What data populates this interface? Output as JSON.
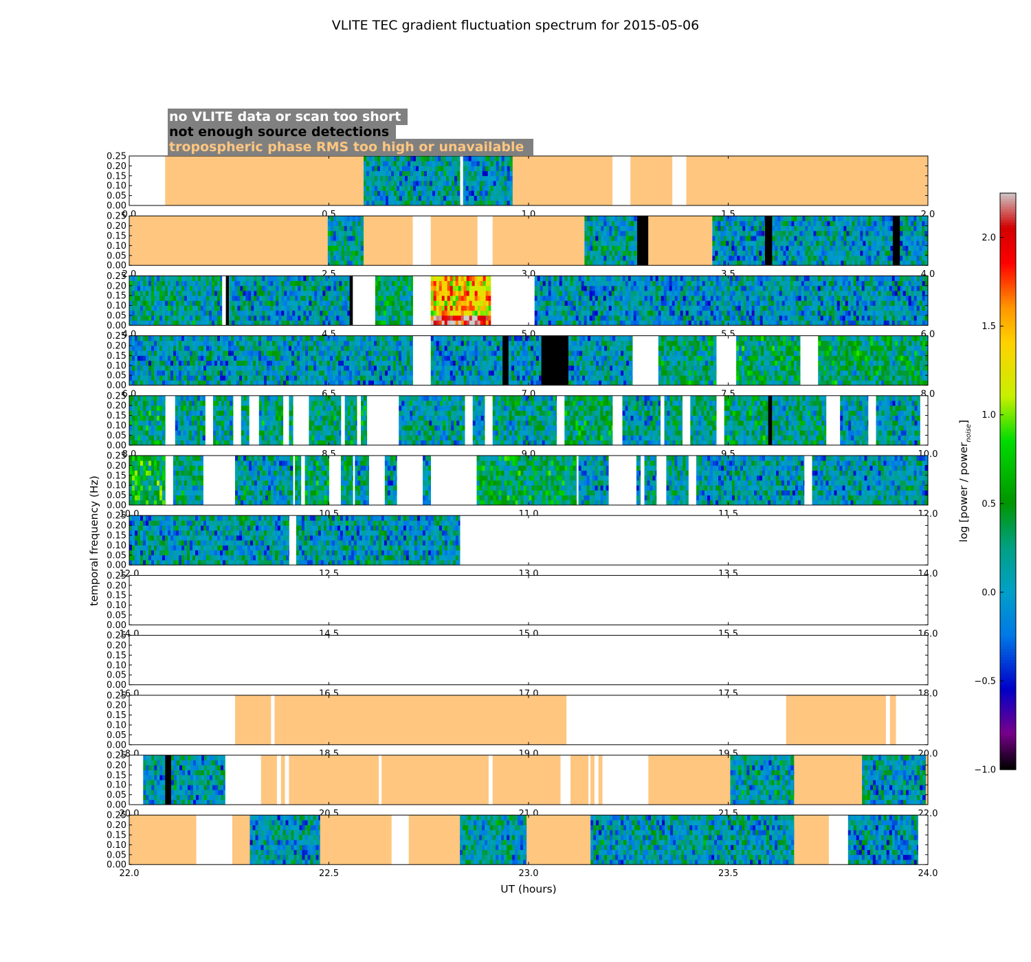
{
  "chart_data": {
    "type": "heatmap",
    "title": "VLITE TEC gradient fluctuation spectrum for 2015-05-06",
    "xlabel": "UT (hours)",
    "ylabel": "temporal frequency (Hz)",
    "colorbar_label": "log [power / power",
    "colorbar_label_sub": "noise",
    "colorbar_label_close": "]",
    "colorbar_range": [
      -1.0,
      2.25
    ],
    "colorbar_ticks": [
      "−1.0",
      "−0.5",
      "0.0",
      "0.5",
      "1.0",
      "1.5",
      "2.0"
    ],
    "colorbar_tick_values": [
      -1.0,
      -0.5,
      0.0,
      0.5,
      1.0,
      1.5,
      2.0
    ],
    "ylim": [
      0.0,
      0.25
    ],
    "y_ticks": [
      "0.00",
      "0.05",
      "0.10",
      "0.15",
      "0.20",
      "0.25"
    ],
    "y_tick_values": [
      0.0,
      0.05,
      0.1,
      0.15,
      0.2,
      0.25
    ],
    "hours_per_row": 2,
    "legend": {
      "no_data": {
        "label": "no VLITE data or scan too short",
        "color": "#ffffff",
        "background": "#808080"
      },
      "few_detections": {
        "label": "not enough source detections",
        "color": "#000000",
        "background": "#808080"
      },
      "tropo": {
        "label": "tropospheric phase RMS too high or unavailable",
        "color": "#ffc680",
        "background": "#808080"
      }
    },
    "category_colors": {
      "tropo": "#ffc680",
      "black": "#000000"
    },
    "rows": [
      {
        "xlim": [
          0,
          2
        ],
        "x_ticks": [
          "0.0",
          "0.5",
          "1.0",
          "1.5",
          "2.0"
        ],
        "segments": [
          {
            "start": 0.09,
            "end": 0.587,
            "kind": "tropo"
          },
          {
            "start": 0.587,
            "end": 0.828,
            "kind": "data",
            "level": 0.05
          },
          {
            "start": 0.836,
            "end": 0.96,
            "kind": "data",
            "level": 0.05
          },
          {
            "start": 0.96,
            "end": 1.21,
            "kind": "tropo"
          },
          {
            "start": 1.255,
            "end": 1.36,
            "kind": "tropo"
          },
          {
            "start": 1.395,
            "end": 2.0,
            "kind": "tropo"
          }
        ]
      },
      {
        "xlim": [
          2,
          4
        ],
        "x_ticks": [
          "2.0",
          "2.5",
          "3.0",
          "3.5",
          "4.0"
        ],
        "segments": [
          {
            "start": 2.0,
            "end": 2.497,
            "kind": "tropo"
          },
          {
            "start": 2.497,
            "end": 2.587,
            "kind": "data",
            "level": 0.15
          },
          {
            "start": 2.587,
            "end": 2.71,
            "kind": "tropo"
          },
          {
            "start": 2.755,
            "end": 2.872,
            "kind": "tropo"
          },
          {
            "start": 2.91,
            "end": 3.14,
            "kind": "tropo"
          },
          {
            "start": 3.14,
            "end": 3.272,
            "kind": "data",
            "level": 0.1
          },
          {
            "start": 3.272,
            "end": 3.3,
            "kind": "black"
          },
          {
            "start": 3.3,
            "end": 3.46,
            "kind": "tropo"
          },
          {
            "start": 3.46,
            "end": 3.592,
            "kind": "data",
            "level": 0.0
          },
          {
            "start": 3.592,
            "end": 3.61,
            "kind": "black"
          },
          {
            "start": 3.61,
            "end": 3.912,
            "kind": "data",
            "level": 0.0
          },
          {
            "start": 3.912,
            "end": 3.93,
            "kind": "black"
          },
          {
            "start": 3.93,
            "end": 4.0,
            "kind": "data",
            "level": 0.05
          }
        ]
      },
      {
        "xlim": [
          4,
          6
        ],
        "x_ticks": [
          "4.0",
          "4.5",
          "5.0",
          "5.5",
          "6.0"
        ],
        "segments": [
          {
            "start": 4.0,
            "end": 4.232,
            "kind": "data",
            "level": 0.15
          },
          {
            "start": 4.242,
            "end": 4.25,
            "kind": "black"
          },
          {
            "start": 4.25,
            "end": 4.552,
            "kind": "data",
            "level": 0.05
          },
          {
            "start": 4.552,
            "end": 4.56,
            "kind": "black"
          },
          {
            "start": 4.616,
            "end": 4.71,
            "kind": "data",
            "level": 0.3
          },
          {
            "start": 4.755,
            "end": 4.905,
            "kind": "data",
            "level": 1.4
          },
          {
            "start": 5.015,
            "end": 6.0,
            "kind": "data",
            "level": 0.0
          }
        ]
      },
      {
        "xlim": [
          6,
          8
        ],
        "x_ticks": [
          "6.0",
          "6.5",
          "7.0",
          "7.5",
          "8.0"
        ],
        "segments": [
          {
            "start": 6.0,
            "end": 6.71,
            "kind": "data",
            "level": 0.05
          },
          {
            "start": 6.755,
            "end": 6.935,
            "kind": "data",
            "level": 0.0
          },
          {
            "start": 6.935,
            "end": 6.95,
            "kind": "black"
          },
          {
            "start": 6.95,
            "end": 7.032,
            "kind": "data",
            "level": 0.0
          },
          {
            "start": 7.032,
            "end": 7.1,
            "kind": "black"
          },
          {
            "start": 7.1,
            "end": 7.26,
            "kind": "data",
            "level": 0.05
          },
          {
            "start": 7.325,
            "end": 7.47,
            "kind": "data",
            "level": 0.25
          },
          {
            "start": 7.52,
            "end": 7.68,
            "kind": "data",
            "level": 0.3
          },
          {
            "start": 7.725,
            "end": 8.0,
            "kind": "data",
            "level": 0.3
          }
        ]
      },
      {
        "xlim": [
          8,
          10
        ],
        "x_ticks": [
          "8.0",
          "8.5",
          "9.0",
          "9.5",
          "10.0"
        ],
        "segments": [
          {
            "start": 8.0,
            "end": 8.09,
            "kind": "data",
            "level": 0.3
          },
          {
            "start": 8.115,
            "end": 8.19,
            "kind": "data",
            "level": 0.1
          },
          {
            "start": 8.21,
            "end": 8.26,
            "kind": "data",
            "level": 0.2
          },
          {
            "start": 8.28,
            "end": 8.3,
            "kind": "data",
            "level": 0.2
          },
          {
            "start": 8.325,
            "end": 8.385,
            "kind": "data",
            "level": 0.25
          },
          {
            "start": 8.4,
            "end": 8.41,
            "kind": "data",
            "level": 0.3
          },
          {
            "start": 8.45,
            "end": 8.53,
            "kind": "data",
            "level": 0.25
          },
          {
            "start": 8.54,
            "end": 8.57,
            "kind": "data",
            "level": 0.2
          },
          {
            "start": 8.58,
            "end": 8.595,
            "kind": "data",
            "level": 0.3
          },
          {
            "start": 8.675,
            "end": 8.84,
            "kind": "data",
            "level": 0.1
          },
          {
            "start": 8.86,
            "end": 8.89,
            "kind": "data",
            "level": 0.1
          },
          {
            "start": 8.91,
            "end": 9.07,
            "kind": "data",
            "level": 0.15
          },
          {
            "start": 9.09,
            "end": 9.21,
            "kind": "data",
            "level": 0.35
          },
          {
            "start": 9.235,
            "end": 9.33,
            "kind": "data",
            "level": 0.1
          },
          {
            "start": 9.34,
            "end": 9.385,
            "kind": "data",
            "level": 0.2
          },
          {
            "start": 9.405,
            "end": 9.47,
            "kind": "data",
            "level": 0.2
          },
          {
            "start": 9.49,
            "end": 9.6,
            "kind": "data",
            "level": 0.3
          },
          {
            "start": 9.6,
            "end": 9.61,
            "kind": "black"
          },
          {
            "start": 9.61,
            "end": 9.745,
            "kind": "data",
            "level": 0.2
          },
          {
            "start": 9.78,
            "end": 9.85,
            "kind": "data",
            "level": 0.05
          },
          {
            "start": 9.87,
            "end": 9.98,
            "kind": "data",
            "level": 0.05
          }
        ]
      },
      {
        "xlim": [
          10,
          12
        ],
        "x_ticks": [
          "10.0",
          "10.5",
          "11.0",
          "11.5",
          "12.0"
        ],
        "segments": [
          {
            "start": 10.0,
            "end": 10.09,
            "kind": "data",
            "level": 0.5
          },
          {
            "start": 10.11,
            "end": 10.185,
            "kind": "data",
            "level": 0.2
          },
          {
            "start": 10.265,
            "end": 10.41,
            "kind": "data",
            "level": 0.1
          },
          {
            "start": 10.415,
            "end": 10.43,
            "kind": "data",
            "level": 0.3
          },
          {
            "start": 10.44,
            "end": 10.5,
            "kind": "data",
            "level": 0.3
          },
          {
            "start": 10.53,
            "end": 10.56,
            "kind": "data",
            "level": 0.2
          },
          {
            "start": 10.565,
            "end": 10.6,
            "kind": "data",
            "level": 0.1
          },
          {
            "start": 10.64,
            "end": 10.67,
            "kind": "data",
            "level": 0.1
          },
          {
            "start": 10.735,
            "end": 10.755,
            "kind": "data",
            "level": 0.1
          },
          {
            "start": 10.87,
            "end": 11.12,
            "kind": "data",
            "level": 0.35
          },
          {
            "start": 11.125,
            "end": 11.2,
            "kind": "data",
            "level": 0.05
          },
          {
            "start": 11.27,
            "end": 11.28,
            "kind": "data",
            "level": 0.1
          },
          {
            "start": 11.29,
            "end": 11.32,
            "kind": "data",
            "level": 0.1
          },
          {
            "start": 11.345,
            "end": 11.4,
            "kind": "data",
            "level": 0.1
          },
          {
            "start": 11.42,
            "end": 11.69,
            "kind": "data",
            "level": 0.05
          },
          {
            "start": 11.71,
            "end": 12.0,
            "kind": "data",
            "level": 0.05
          }
        ]
      },
      {
        "xlim": [
          12,
          14
        ],
        "x_ticks": [
          "12.0",
          "12.5",
          "13.0",
          "13.5",
          "14.0"
        ],
        "segments": [
          {
            "start": 12.0,
            "end": 12.4,
            "kind": "data",
            "level": 0.05
          },
          {
            "start": 12.418,
            "end": 12.828,
            "kind": "data",
            "level": 0.05
          }
        ]
      },
      {
        "xlim": [
          14,
          16
        ],
        "x_ticks": [
          "14.0",
          "14.5",
          "15.0",
          "15.5",
          "16.0"
        ],
        "segments": []
      },
      {
        "xlim": [
          16,
          18
        ],
        "x_ticks": [
          "16.0",
          "16.5",
          "17.0",
          "17.5",
          "18.0"
        ],
        "segments": []
      },
      {
        "xlim": [
          18,
          20
        ],
        "x_ticks": [
          "18.0",
          "18.5",
          "19.0",
          "19.5",
          "20.0"
        ],
        "segments": [
          {
            "start": 18.265,
            "end": 18.355,
            "kind": "tropo"
          },
          {
            "start": 18.364,
            "end": 19.095,
            "kind": "tropo"
          },
          {
            "start": 19.645,
            "end": 19.895,
            "kind": "tropo"
          },
          {
            "start": 19.905,
            "end": 19.92,
            "kind": "tropo"
          }
        ]
      },
      {
        "xlim": [
          20,
          22
        ],
        "x_ticks": [
          "20.0",
          "20.5",
          "21.0",
          "21.5",
          "22.0"
        ],
        "segments": [
          {
            "start": 20.035,
            "end": 20.09,
            "kind": "data",
            "level": 0.05
          },
          {
            "start": 20.09,
            "end": 20.105,
            "kind": "black"
          },
          {
            "start": 20.105,
            "end": 20.24,
            "kind": "data",
            "level": 0.05
          },
          {
            "start": 20.33,
            "end": 20.37,
            "kind": "tropo"
          },
          {
            "start": 20.38,
            "end": 20.39,
            "kind": "tropo"
          },
          {
            "start": 20.4,
            "end": 20.41,
            "kind": "tropo"
          },
          {
            "start": 20.41,
            "end": 20.625,
            "kind": "tropo"
          },
          {
            "start": 20.632,
            "end": 20.9,
            "kind": "tropo"
          },
          {
            "start": 20.91,
            "end": 21.08,
            "kind": "tropo"
          },
          {
            "start": 21.105,
            "end": 21.15,
            "kind": "tropo"
          },
          {
            "start": 21.155,
            "end": 21.165,
            "kind": "tropo"
          },
          {
            "start": 21.175,
            "end": 21.185,
            "kind": "tropo"
          },
          {
            "start": 21.3,
            "end": 21.505,
            "kind": "tropo"
          },
          {
            "start": 21.505,
            "end": 21.665,
            "kind": "data",
            "level": 0.1
          },
          {
            "start": 21.665,
            "end": 21.835,
            "kind": "tropo"
          },
          {
            "start": 21.835,
            "end": 21.995,
            "kind": "data",
            "level": 0.05
          },
          {
            "start": 21.995,
            "end": 22.0,
            "kind": "tropo"
          }
        ]
      },
      {
        "xlim": [
          22,
          24
        ],
        "x_ticks": [
          "22.0",
          "22.5",
          "23.0",
          "23.5",
          "24.0"
        ],
        "segments": [
          {
            "start": 22.0,
            "end": 22.168,
            "kind": "tropo"
          },
          {
            "start": 22.258,
            "end": 22.302,
            "kind": "tropo"
          },
          {
            "start": 22.302,
            "end": 22.478,
            "kind": "data",
            "level": 0.05
          },
          {
            "start": 22.478,
            "end": 22.657,
            "kind": "tropo"
          },
          {
            "start": 22.7,
            "end": 22.828,
            "kind": "tropo"
          },
          {
            "start": 22.828,
            "end": 22.995,
            "kind": "data",
            "level": 0.1
          },
          {
            "start": 22.995,
            "end": 23.155,
            "kind": "tropo"
          },
          {
            "start": 23.155,
            "end": 23.665,
            "kind": "data",
            "level": 0.05
          },
          {
            "start": 23.665,
            "end": 23.752,
            "kind": "tropo"
          },
          {
            "start": 23.8,
            "end": 23.975,
            "kind": "data",
            "level": 0.0
          }
        ]
      }
    ]
  }
}
